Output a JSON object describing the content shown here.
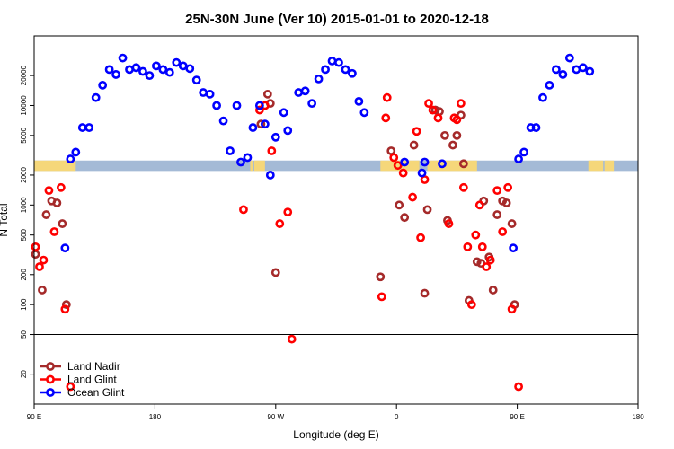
{
  "chart_data": {
    "type": "scatter",
    "title": "25N-30N June (Ver 10)   2015-01-01 to 2020-12-18",
    "xlabel": "Longitude (deg E)",
    "ylabel": "N Total",
    "x_scale": "cyclic longitude, 90E to 180 (450 degrees span)",
    "y_scale": "log",
    "xlim": [
      90,
      540
    ],
    "ylim": [
      10,
      50000
    ],
    "x_ticks": [
      {
        "value": 90,
        "label": "90 E"
      },
      {
        "value": 180,
        "label": "180"
      },
      {
        "value": 270,
        "label": "90 W"
      },
      {
        "value": 360,
        "label": "0"
      },
      {
        "value": 450,
        "label": "90 E"
      },
      {
        "value": 540,
        "label": "180"
      }
    ],
    "y_ticks": [
      {
        "value": 20,
        "label": "20"
      },
      {
        "value": 50,
        "label": "50"
      },
      {
        "value": 100,
        "label": "100"
      },
      {
        "value": 200,
        "label": "200"
      },
      {
        "value": 500,
        "label": "500"
      },
      {
        "value": 1000,
        "label": "1000"
      },
      {
        "value": 2000,
        "label": "2000"
      },
      {
        "value": 5000,
        "label": "5000"
      },
      {
        "value": 10000,
        "label": "10000"
      },
      {
        "value": 20000,
        "label": "20000"
      }
    ],
    "reference_line": {
      "y": 50
    },
    "band": {
      "y_from": 2200,
      "y_to": 2800,
      "ocean_color": "#A4BAD6",
      "land_color": "#F5D77A",
      "land_segments": [
        [
          90,
          121
        ],
        [
          251,
          253
        ],
        [
          254,
          262
        ],
        [
          348,
          377
        ],
        [
          383,
          420
        ],
        [
          503,
          514
        ],
        [
          515,
          522
        ]
      ]
    },
    "legend": {
      "position": "bottom-left"
    },
    "series": [
      {
        "name": "Land Nadir",
        "color": "#A52A2A",
        "points": [
          [
            91,
            320
          ],
          [
            96,
            140
          ],
          [
            99,
            800
          ],
          [
            103,
            1100
          ],
          [
            107,
            1050
          ],
          [
            111,
            650
          ],
          [
            114,
            100
          ],
          [
            259,
            6500
          ],
          [
            264,
            13000
          ],
          [
            266,
            10500
          ],
          [
            270,
            210
          ],
          [
            348,
            190
          ],
          [
            356,
            3500
          ],
          [
            362,
            1000
          ],
          [
            366,
            750
          ],
          [
            373,
            4000
          ],
          [
            381,
            130
          ],
          [
            383,
            900
          ],
          [
            389,
            9000
          ],
          [
            392,
            8700
          ],
          [
            396,
            5000
          ],
          [
            398,
            700
          ],
          [
            402,
            4000
          ],
          [
            405,
            5000
          ],
          [
            408,
            8000
          ],
          [
            410,
            2600
          ],
          [
            414,
            110
          ],
          [
            420,
            270
          ],
          [
            423,
            260
          ],
          [
            425,
            1100
          ],
          [
            429,
            300
          ],
          [
            432,
            140
          ],
          [
            435,
            800
          ],
          [
            439,
            1100
          ],
          [
            442,
            1050
          ],
          [
            446,
            650
          ],
          [
            448,
            100
          ]
        ]
      },
      {
        "name": "Land Glint",
        "color": "#FF0000",
        "points": [
          [
            91,
            380
          ],
          [
            94,
            240
          ],
          [
            97,
            280
          ],
          [
            101,
            1400
          ],
          [
            105,
            540
          ],
          [
            110,
            1500
          ],
          [
            113,
            90
          ],
          [
            117,
            15
          ],
          [
            246,
            900
          ],
          [
            258,
            9000
          ],
          [
            262,
            10000
          ],
          [
            267,
            3500
          ],
          [
            273,
            650
          ],
          [
            279,
            850
          ],
          [
            282,
            45
          ],
          [
            349,
            120
          ],
          [
            352,
            7500
          ],
          [
            353,
            12000
          ],
          [
            358,
            3000
          ],
          [
            361,
            2500
          ],
          [
            365,
            2100
          ],
          [
            372,
            1200
          ],
          [
            375,
            5500
          ],
          [
            378,
            470
          ],
          [
            381,
            1800
          ],
          [
            384,
            10500
          ],
          [
            387,
            9000
          ],
          [
            391,
            7500
          ],
          [
            399,
            650
          ],
          [
            403,
            7500
          ],
          [
            405,
            7200
          ],
          [
            408,
            10500
          ],
          [
            410,
            1500
          ],
          [
            413,
            380
          ],
          [
            416,
            100
          ],
          [
            419,
            500
          ],
          [
            422,
            1000
          ],
          [
            424,
            380
          ],
          [
            427,
            240
          ],
          [
            430,
            280
          ],
          [
            435,
            1400
          ],
          [
            439,
            540
          ],
          [
            443,
            1500
          ],
          [
            446,
            90
          ],
          [
            451,
            15
          ]
        ]
      },
      {
        "name": "Ocean Glint",
        "color": "#0000FF",
        "points": [
          [
            113,
            370
          ],
          [
            117,
            2900
          ],
          [
            121,
            3400
          ],
          [
            126,
            6000
          ],
          [
            131,
            6000
          ],
          [
            136,
            12000
          ],
          [
            141,
            16000
          ],
          [
            146,
            23000
          ],
          [
            151,
            20500
          ],
          [
            156,
            30000
          ],
          [
            161,
            23000
          ],
          [
            166,
            24000
          ],
          [
            171,
            22000
          ],
          [
            176,
            20000
          ],
          [
            181,
            25000
          ],
          [
            186,
            23000
          ],
          [
            191,
            21500
          ],
          [
            196,
            27000
          ],
          [
            201,
            25000
          ],
          [
            206,
            23500
          ],
          [
            211,
            18000
          ],
          [
            216,
            13500
          ],
          [
            221,
            13000
          ],
          [
            226,
            10000
          ],
          [
            231,
            7000
          ],
          [
            236,
            3500
          ],
          [
            241,
            10000
          ],
          [
            244,
            2700
          ],
          [
            249,
            3000
          ],
          [
            253,
            6000
          ],
          [
            258,
            10000
          ],
          [
            262,
            6500
          ],
          [
            266,
            2000
          ],
          [
            270,
            4800
          ],
          [
            276,
            8500
          ],
          [
            279,
            5600
          ],
          [
            287,
            13500
          ],
          [
            292,
            14000
          ],
          [
            297,
            10500
          ],
          [
            302,
            18500
          ],
          [
            307,
            23000
          ],
          [
            312,
            28000
          ],
          [
            317,
            27000
          ],
          [
            322,
            23000
          ],
          [
            327,
            21000
          ],
          [
            332,
            11000
          ],
          [
            336,
            8500
          ],
          [
            366,
            2700
          ],
          [
            379,
            2100
          ],
          [
            381,
            2700
          ],
          [
            394,
            2600
          ],
          [
            447,
            370
          ],
          [
            451,
            2900
          ],
          [
            455,
            3400
          ],
          [
            460,
            6000
          ],
          [
            464,
            6000
          ],
          [
            469,
            12000
          ],
          [
            474,
            16000
          ],
          [
            479,
            23000
          ],
          [
            484,
            20500
          ],
          [
            489,
            30000
          ],
          [
            494,
            23000
          ],
          [
            499,
            24000
          ],
          [
            504,
            22000
          ]
        ]
      }
    ]
  }
}
